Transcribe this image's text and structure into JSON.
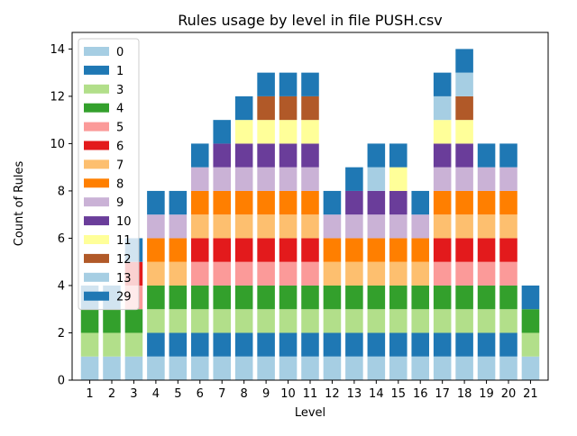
{
  "chart_data": {
    "type": "bar",
    "stacked": true,
    "title": "Rules usage by level in file PUSH.csv",
    "xlabel": "Level",
    "ylabel": "Count of Rules",
    "categories": [
      "1",
      "2",
      "3",
      "4",
      "5",
      "6",
      "7",
      "8",
      "9",
      "10",
      "11",
      "12",
      "13",
      "14",
      "15",
      "16",
      "17",
      "18",
      "19",
      "20",
      "21"
    ],
    "ylim": [
      0,
      14.7
    ],
    "yticks": [
      0,
      2,
      4,
      6,
      8,
      10,
      12,
      14
    ],
    "grid": false,
    "legend_position": "top-left",
    "series": [
      {
        "name": "0",
        "color": "#a6cee3",
        "values": [
          1,
          1,
          1,
          1,
          1,
          1,
          1,
          1,
          1,
          1,
          1,
          1,
          1,
          1,
          1,
          1,
          1,
          1,
          1,
          1,
          1
        ]
      },
      {
        "name": "1",
        "color": "#1f78b4",
        "values": [
          0,
          0,
          0,
          1,
          1,
          1,
          1,
          1,
          1,
          1,
          1,
          1,
          1,
          1,
          1,
          1,
          1,
          1,
          1,
          1,
          0
        ]
      },
      {
        "name": "3",
        "color": "#b2df8a",
        "values": [
          1,
          1,
          1,
          1,
          1,
          1,
          1,
          1,
          1,
          1,
          1,
          1,
          1,
          1,
          1,
          1,
          1,
          1,
          1,
          1,
          1
        ]
      },
      {
        "name": "4",
        "color": "#33a02c",
        "values": [
          1,
          1,
          1,
          1,
          1,
          1,
          1,
          1,
          1,
          1,
          1,
          1,
          1,
          1,
          1,
          1,
          1,
          1,
          1,
          1,
          1
        ]
      },
      {
        "name": "5",
        "color": "#fb9a99",
        "values": [
          0,
          0,
          1,
          0,
          0,
          1,
          1,
          1,
          1,
          1,
          1,
          0,
          0,
          0,
          0,
          0,
          1,
          1,
          1,
          1,
          0
        ]
      },
      {
        "name": "6",
        "color": "#e31a1c",
        "values": [
          0,
          0,
          1,
          0,
          0,
          1,
          1,
          1,
          1,
          1,
          1,
          0,
          0,
          0,
          0,
          0,
          1,
          1,
          1,
          1,
          0
        ]
      },
      {
        "name": "7",
        "color": "#fdbf6f",
        "values": [
          0,
          0,
          0,
          1,
          1,
          1,
          1,
          1,
          1,
          1,
          1,
          1,
          1,
          1,
          1,
          1,
          1,
          1,
          1,
          1,
          0
        ]
      },
      {
        "name": "8",
        "color": "#ff7f00",
        "values": [
          0,
          0,
          0,
          1,
          1,
          1,
          1,
          1,
          1,
          1,
          1,
          1,
          1,
          1,
          1,
          1,
          1,
          1,
          1,
          1,
          0
        ]
      },
      {
        "name": "9",
        "color": "#cab2d6",
        "values": [
          0,
          0,
          0,
          1,
          1,
          1,
          1,
          1,
          1,
          1,
          1,
          1,
          1,
          1,
          1,
          1,
          1,
          1,
          1,
          1,
          0
        ]
      },
      {
        "name": "10",
        "color": "#6a3d9a",
        "values": [
          0,
          0,
          0,
          0,
          0,
          0,
          1,
          1,
          1,
          1,
          1,
          0,
          1,
          1,
          1,
          0,
          1,
          1,
          0,
          0,
          0
        ]
      },
      {
        "name": "11",
        "color": "#ffff99",
        "values": [
          0,
          0,
          0,
          0,
          0,
          0,
          0,
          1,
          1,
          1,
          1,
          0,
          0,
          0,
          1,
          0,
          1,
          1,
          0,
          0,
          0
        ]
      },
      {
        "name": "12",
        "color": "#b15928",
        "values": [
          0,
          0,
          0,
          0,
          0,
          0,
          0,
          0,
          1,
          1,
          1,
          0,
          0,
          0,
          0,
          0,
          0,
          1,
          0,
          0,
          0
        ]
      },
      {
        "name": "13",
        "color": "#a6cee3",
        "values": [
          0,
          0,
          0,
          0,
          0,
          0,
          0,
          0,
          0,
          0,
          0,
          0,
          0,
          1,
          0,
          0,
          1,
          1,
          0,
          0,
          0
        ]
      },
      {
        "name": "29",
        "color": "#1f78b4",
        "values": [
          1,
          1,
          1,
          1,
          1,
          1,
          1,
          1,
          1,
          1,
          1,
          1,
          1,
          1,
          1,
          1,
          1,
          1,
          1,
          1,
          1
        ]
      }
    ]
  }
}
